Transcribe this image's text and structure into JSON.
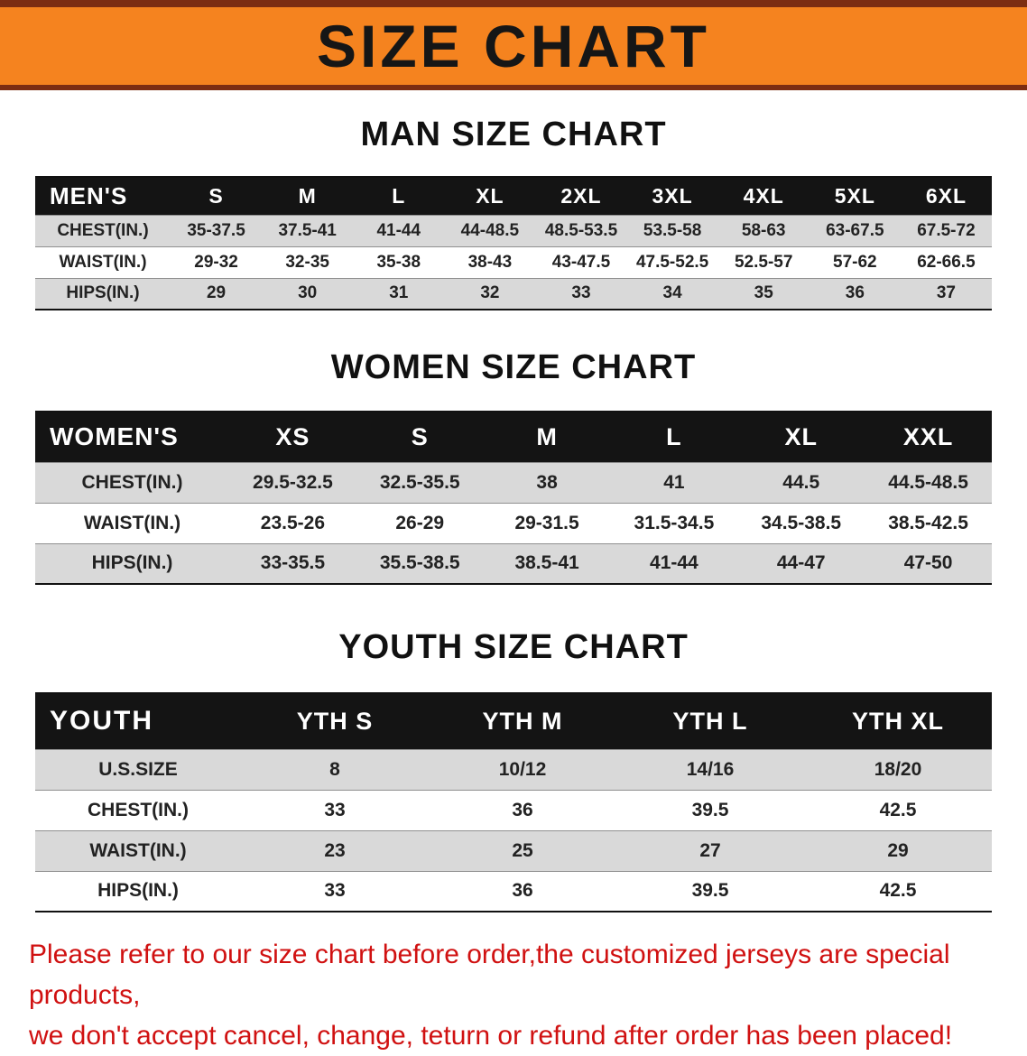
{
  "banner": {
    "title": "SIZE CHART",
    "bg_color": "#f5831f",
    "border_color": "#7c2d12"
  },
  "sections": {
    "men": {
      "title": "MAN SIZE CHART",
      "table": {
        "header": [
          "MEN'S",
          "S",
          "M",
          "L",
          "XL",
          "2XL",
          "3XL",
          "4XL",
          "5XL",
          "6XL"
        ],
        "rows": [
          [
            "CHEST(IN.)",
            "35-37.5",
            "37.5-41",
            "41-44",
            "44-48.5",
            "48.5-53.5",
            "53.5-58",
            "58-63",
            "63-67.5",
            "67.5-72"
          ],
          [
            "WAIST(IN.)",
            "29-32",
            "32-35",
            "35-38",
            "38-43",
            "43-47.5",
            "47.5-52.5",
            "52.5-57",
            "57-62",
            "62-66.5"
          ],
          [
            "HIPS(IN.)",
            "29",
            "30",
            "31",
            "32",
            "33",
            "34",
            "35",
            "36",
            "37"
          ]
        ]
      }
    },
    "women": {
      "title": "WOMEN SIZE CHART",
      "table": {
        "header": [
          "WOMEN'S",
          "XS",
          "S",
          "M",
          "L",
          "XL",
          "XXL"
        ],
        "rows": [
          [
            "CHEST(IN.)",
            "29.5-32.5",
            "32.5-35.5",
            "38",
            "41",
            "44.5",
            "44.5-48.5"
          ],
          [
            "WAIST(IN.)",
            "23.5-26",
            "26-29",
            "29-31.5",
            "31.5-34.5",
            "34.5-38.5",
            "38.5-42.5"
          ],
          [
            "HIPS(IN.)",
            "33-35.5",
            "35.5-38.5",
            "38.5-41",
            "41-44",
            "44-47",
            "47-50"
          ]
        ]
      }
    },
    "youth": {
      "title": "YOUTH SIZE CHART",
      "table": {
        "header": [
          "YOUTH",
          "YTH S",
          "YTH M",
          "YTH L",
          "YTH XL"
        ],
        "rows": [
          [
            "U.S.SIZE",
            "8",
            "10/12",
            "14/16",
            "18/20"
          ],
          [
            "CHEST(IN.)",
            "33",
            "36",
            "39.5",
            "42.5"
          ],
          [
            "WAIST(IN.)",
            "23",
            "25",
            "27",
            "29"
          ],
          [
            "HIPS(IN.)",
            "33",
            "36",
            "39.5",
            "42.5"
          ]
        ]
      }
    }
  },
  "footer": {
    "line1": "Please refer to our size chart before order,the customized jerseys are special products,",
    "line2": "we don't accept cancel, change, teturn or refund after order has been placed!",
    "text_color": "#d01111"
  }
}
